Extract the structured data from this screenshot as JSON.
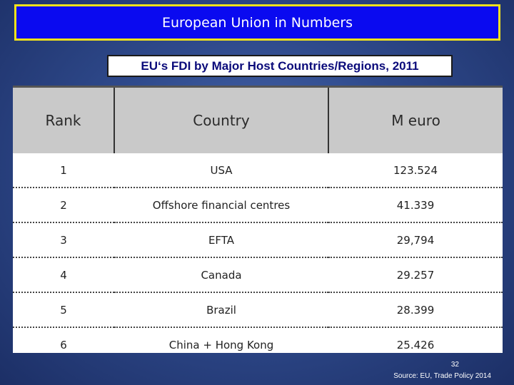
{
  "header": {
    "title": "European Union in Numbers"
  },
  "subtitle": "EU‘s FDI by Major Host Countries/Regions, 2011",
  "table": {
    "columns": [
      "Rank",
      "Country",
      "M euro"
    ],
    "rows": [
      [
        "1",
        "USA",
        "123.524"
      ],
      [
        "2",
        "Offshore financial centres",
        "41.339"
      ],
      [
        "3",
        "EFTA",
        "29,794"
      ],
      [
        "4",
        "Canada",
        "29.257"
      ],
      [
        "5",
        "Brazil",
        "28.399"
      ],
      [
        "6",
        "China + Hong Kong",
        "25.426"
      ]
    ]
  },
  "footer": {
    "page_number": "32",
    "source": "Source: EU,  Trade Policy 2014"
  },
  "colors": {
    "title_bg": "#0a0af0",
    "title_border": "#f4e21a",
    "header_row_bg": "#c9c9c9"
  }
}
